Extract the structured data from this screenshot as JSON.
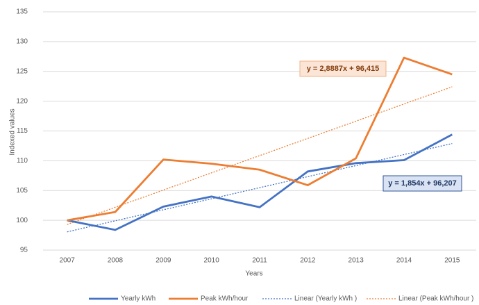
{
  "chart_data": {
    "type": "line",
    "categories": [
      "2007",
      "2008",
      "2009",
      "2010",
      "2011",
      "2012",
      "2013",
      "2014",
      "2015"
    ],
    "x_label": "Years",
    "y_label": "Indexed values",
    "ylim": [
      95,
      135
    ],
    "yticks": [
      95,
      100,
      105,
      110,
      115,
      120,
      125,
      130,
      135
    ],
    "grid": true,
    "legend": "bottom",
    "series": [
      {
        "name": "Yearly kWh",
        "color": "#4472c4",
        "style": "solid",
        "values": [
          100,
          98.4,
          102.3,
          104,
          102.2,
          108.2,
          109.6,
          110.1,
          114.4
        ]
      },
      {
        "name": "Peak kWh/hour",
        "color": "#ed7d31",
        "style": "solid",
        "values": [
          100,
          101.4,
          110.2,
          109.5,
          108.5,
          105.9,
          110.4,
          127.3,
          124.5
        ]
      },
      {
        "name": "Linear (Yearly kWh )",
        "color": "#4472c4",
        "style": "dotted",
        "values": [
          98.06,
          99.92,
          101.77,
          103.62,
          105.48,
          107.33,
          109.19,
          111.04,
          112.89
        ]
      },
      {
        "name": "Linear (Peak kWh/hour )",
        "color": "#ed7d31",
        "style": "dotted",
        "values": [
          99.3,
          102.19,
          105.08,
          107.97,
          110.86,
          113.75,
          116.64,
          119.53,
          122.41
        ]
      }
    ],
    "annotations": [
      "y = 2,8887x + 96,415",
      "y = 1,854x + 96,207"
    ]
  }
}
